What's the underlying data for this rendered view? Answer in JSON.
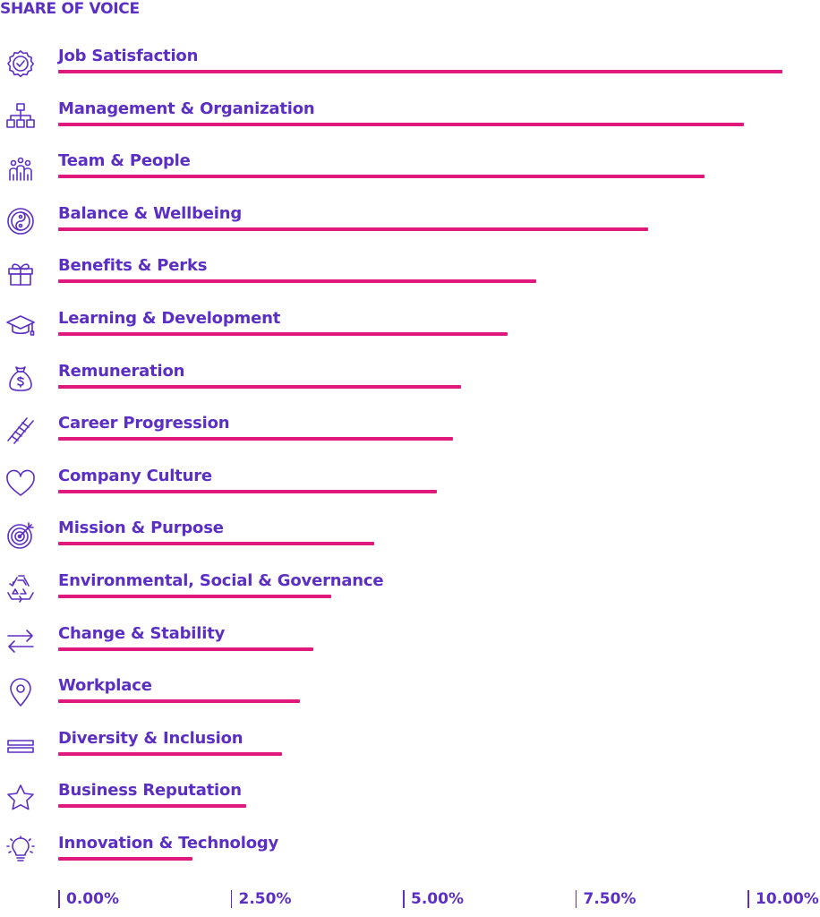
{
  "chart_data": {
    "type": "bar",
    "orientation": "horizontal",
    "title": "SHARE OF VOICE",
    "categories": [
      "Job Satisfaction",
      "Management & Organization",
      "Team & People",
      "Balance & Wellbeing",
      "Benefits & Perks",
      "Learning & Development",
      "Remuneration",
      "Career Progression",
      "Company Culture",
      "Mission & Purpose",
      "Environmental, Social & Governance",
      "Change & Stability",
      "Workplace",
      "Diversity & Inclusion",
      "Business Reputation",
      "Innovation & Technology"
    ],
    "icons": [
      "badge-check-icon",
      "org-chart-icon",
      "people-group-icon",
      "yin-yang-icon",
      "gift-icon",
      "graduation-cap-icon",
      "money-bag-icon",
      "ladder-icon",
      "heart-icon",
      "target-icon",
      "recycle-icon",
      "exchange-arrows-icon",
      "location-pin-icon",
      "stacked-bars-icon",
      "star-icon",
      "lightbulb-icon"
    ],
    "values": [
      10.5,
      9.95,
      9.38,
      8.56,
      6.93,
      6.52,
      5.85,
      5.73,
      5.49,
      4.58,
      3.96,
      3.7,
      3.5,
      3.25,
      2.73,
      1.95
    ],
    "xlim": [
      0,
      10
    ],
    "xticks": [
      "0.00%",
      "2.50%",
      "5.00%",
      "7.50%",
      "10.00%"
    ],
    "xtick_values": [
      0,
      2.5,
      5,
      7.5,
      10
    ],
    "bar_color": "#e0197d",
    "text_color": "#5b2fc4",
    "grid": false,
    "legend": "none"
  }
}
